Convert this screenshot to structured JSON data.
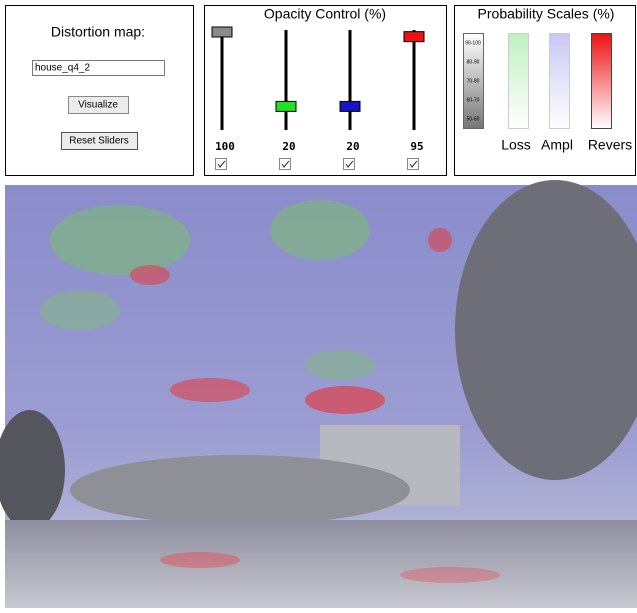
{
  "distortion_panel": {
    "title": "Distortion map:",
    "input_value": "house_q4_2",
    "visualize_button": "Visualize",
    "reset_button": "Reset Sliders"
  },
  "opacity_panel": {
    "title": "Opacity Control (%)",
    "sliders": [
      {
        "value": 100,
        "color": "#8a8a8a"
      },
      {
        "value": 20,
        "color": "#22e022"
      },
      {
        "value": 20,
        "color": "#1414c8"
      },
      {
        "value": 95,
        "color": "#ee1111"
      }
    ]
  },
  "scales_panel": {
    "title": "Probability Scales (%)",
    "gray_labels": [
      "90-100",
      "80-90",
      "70-80",
      "60-70",
      "50-60"
    ],
    "scale_names": [
      "Loss",
      "Ampl",
      "Revers"
    ]
  }
}
